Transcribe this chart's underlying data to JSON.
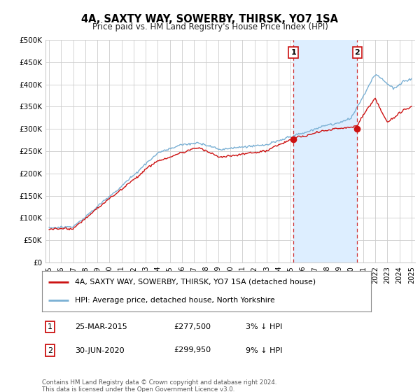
{
  "title": "4A, SAXTY WAY, SOWERBY, THIRSK, YO7 1SA",
  "subtitle": "Price paid vs. HM Land Registry's House Price Index (HPI)",
  "ylabel_ticks": [
    "£0",
    "£50K",
    "£100K",
    "£150K",
    "£200K",
    "£250K",
    "£300K",
    "£350K",
    "£400K",
    "£450K",
    "£500K"
  ],
  "ytick_values": [
    0,
    50000,
    100000,
    150000,
    200000,
    250000,
    300000,
    350000,
    400000,
    450000,
    500000
  ],
  "xlim_start": 1994.7,
  "xlim_end": 2025.3,
  "ylim": [
    0,
    500000
  ],
  "hpi_color": "#7ab0d4",
  "price_color": "#cc1111",
  "marker1_x": 2015.22,
  "marker1_y": 277500,
  "marker2_x": 2020.5,
  "marker2_y": 299950,
  "legend_line1": "4A, SAXTY WAY, SOWERBY, THIRSK, YO7 1SA (detached house)",
  "legend_line2": "HPI: Average price, detached house, North Yorkshire",
  "footer": "Contains HM Land Registry data © Crown copyright and database right 2024.\nThis data is licensed under the Open Government Licence v3.0.",
  "plot_bg_color": "#ffffff",
  "grid_color": "#cccccc",
  "span_color": "#ddeeff"
}
